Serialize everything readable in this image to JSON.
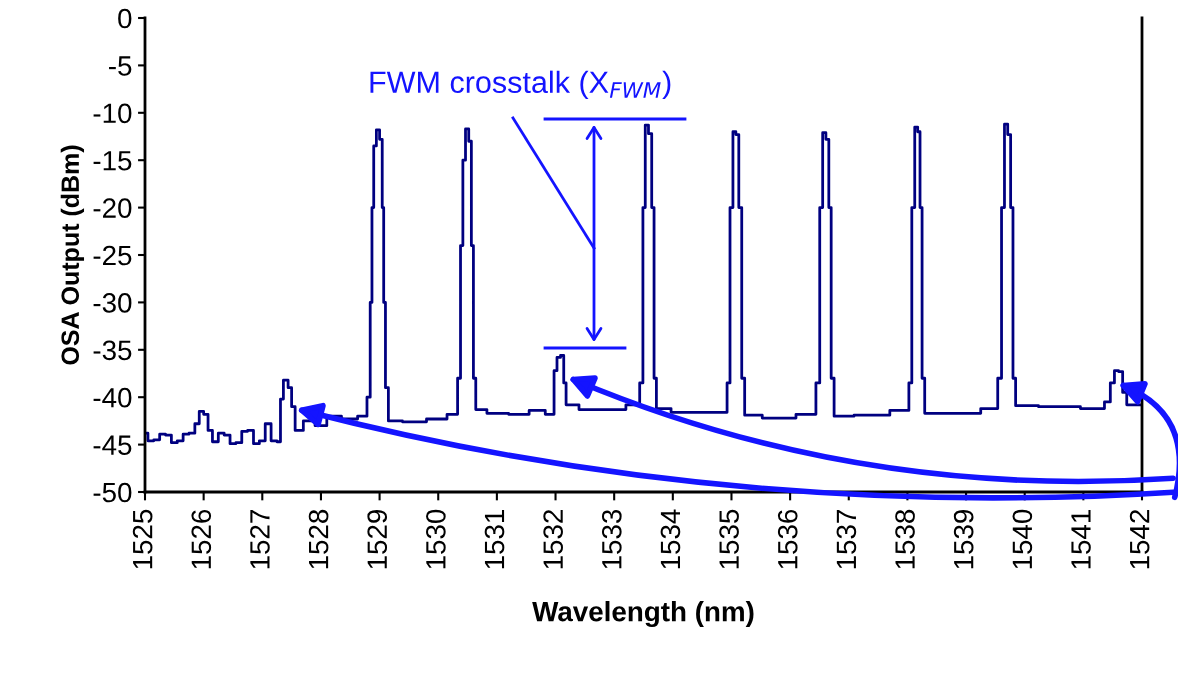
{
  "chart_data": {
    "type": "step",
    "xlabel": "Wavelength (nm)",
    "ylabel": "OSA Output (dBm)",
    "xlim": [
      1525,
      1542
    ],
    "xticks": [
      1525,
      1526,
      1527,
      1528,
      1529,
      1530,
      1531,
      1532,
      1533,
      1534,
      1535,
      1536,
      1537,
      1538,
      1539,
      1540,
      1541,
      1542
    ],
    "ylim": [
      -50,
      0
    ],
    "yticks": [
      -50,
      -45,
      -40,
      -35,
      -30,
      -25,
      -20,
      -15,
      -10,
      -5,
      0
    ],
    "grid": false,
    "marker": "none",
    "line_style": "solid",
    "annotations": [
      "FWM crosstalk (X$_{FWM}$)"
    ],
    "series": [
      {
        "color": "#000080",
        "x": [
          1525.0,
          1525.1,
          1525.2,
          1525.3,
          1525.4,
          1525.5,
          1525.6,
          1525.7,
          1525.8,
          1525.9,
          1525.95,
          1526.05,
          1526.1,
          1526.2,
          1526.3,
          1526.4,
          1526.5,
          1526.6,
          1526.7,
          1526.8,
          1526.9,
          1527.0,
          1527.1,
          1527.2,
          1527.3,
          1527.32,
          1527.4,
          1527.48,
          1527.52,
          1527.6,
          1527.8,
          1528.0,
          1528.2,
          1528.5,
          1528.75,
          1528.82,
          1528.86,
          1528.88,
          1528.92,
          1528.97,
          1529.03,
          1529.06,
          1529.08,
          1529.12,
          1529.18,
          1529.6,
          1530.0,
          1530.3,
          1530.36,
          1530.4,
          1530.44,
          1530.49,
          1530.55,
          1530.58,
          1530.62,
          1530.66,
          1531.0,
          1531.4,
          1531.7,
          1531.95,
          1532.0,
          1532.05,
          1532.12,
          1532.16,
          1532.2,
          1532.6,
          1533.0,
          1533.4,
          1533.47,
          1533.51,
          1533.55,
          1533.62,
          1533.66,
          1533.7,
          1533.74,
          1534.2,
          1534.9,
          1534.95,
          1535.0,
          1535.05,
          1535.1,
          1535.15,
          1535.2,
          1535.25,
          1535.8,
          1536.4,
          1536.48,
          1536.53,
          1536.58,
          1536.64,
          1536.68,
          1536.72,
          1536.78,
          1537.4,
          1538.0,
          1538.05,
          1538.1,
          1538.15,
          1538.2,
          1538.23,
          1538.27,
          1538.32,
          1539.0,
          1539.5,
          1539.58,
          1539.63,
          1539.68,
          1539.74,
          1539.78,
          1539.82,
          1539.87,
          1540.6,
          1541.3,
          1541.42,
          1541.5,
          1541.56,
          1541.64,
          1541.7,
          1541.78,
          1542.0
        ],
        "values": [
          -43.8,
          -44.6,
          -44.5,
          -43.9,
          -44.0,
          -44.8,
          -44.6,
          -43.9,
          -43.8,
          -42.8,
          -41.5,
          -41.8,
          -43.5,
          -44.7,
          -43.8,
          -44.0,
          -44.9,
          -44.8,
          -43.6,
          -43.5,
          -44.9,
          -44.6,
          -42.8,
          -44.6,
          -44.7,
          -40.2,
          -38.2,
          -39.0,
          -41.0,
          -43.5,
          -42.5,
          -43.0,
          -42.0,
          -42.3,
          -42.0,
          -40.0,
          -30.0,
          -20.0,
          -13.5,
          -11.8,
          -12.8,
          -20.0,
          -30.0,
          -39.0,
          -42.5,
          -42.6,
          -42.3,
          -41.8,
          -38.0,
          -24.0,
          -15.0,
          -11.7,
          -13.0,
          -24.0,
          -38.0,
          -41.3,
          -41.7,
          -41.8,
          -41.4,
          -41.8,
          -37.2,
          -35.8,
          -35.6,
          -38.5,
          -40.8,
          -41.3,
          -41.3,
          -40.8,
          -38.5,
          -20.0,
          -11.3,
          -12.2,
          -20.0,
          -38.0,
          -41.2,
          -41.6,
          -41.6,
          -38.5,
          -20.0,
          -12.0,
          -12.3,
          -20.0,
          -38.0,
          -41.9,
          -42.2,
          -41.8,
          -38.5,
          -20.0,
          -12.1,
          -12.8,
          -20.0,
          -38.0,
          -42.0,
          -41.9,
          -41.4,
          -38.5,
          -20.0,
          -11.5,
          -12.0,
          -20.0,
          -38.0,
          -41.7,
          -41.7,
          -41.2,
          -38.0,
          -20.0,
          -11.2,
          -12.3,
          -20.0,
          -38.0,
          -40.9,
          -41.0,
          -41.2,
          -40.5,
          -38.5,
          -37.2,
          -37.3,
          -39.5,
          -40.8,
          -40.8
        ]
      }
    ]
  }
}
